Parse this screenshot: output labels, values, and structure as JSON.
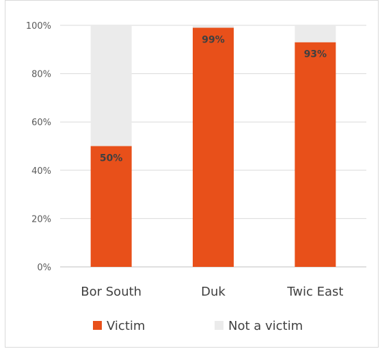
{
  "chart_data": {
    "type": "bar",
    "stacked": true,
    "percent_scale": true,
    "categories": [
      "Bor South",
      "Duk",
      "Twic East"
    ],
    "series": [
      {
        "name": "Victim",
        "values": [
          50,
          99,
          93
        ],
        "color": "#e8501a",
        "data_labels": [
          "50%",
          "99%",
          "93%"
        ]
      },
      {
        "name": "Not a victim",
        "values": [
          50,
          1,
          7
        ],
        "color": "#ebebeb"
      }
    ],
    "ylim": [
      0,
      100
    ],
    "yticks": [
      "0%",
      "20%",
      "40%",
      "60%",
      "80%",
      "100%"
    ],
    "grid": true,
    "legend_position": "bottom"
  }
}
